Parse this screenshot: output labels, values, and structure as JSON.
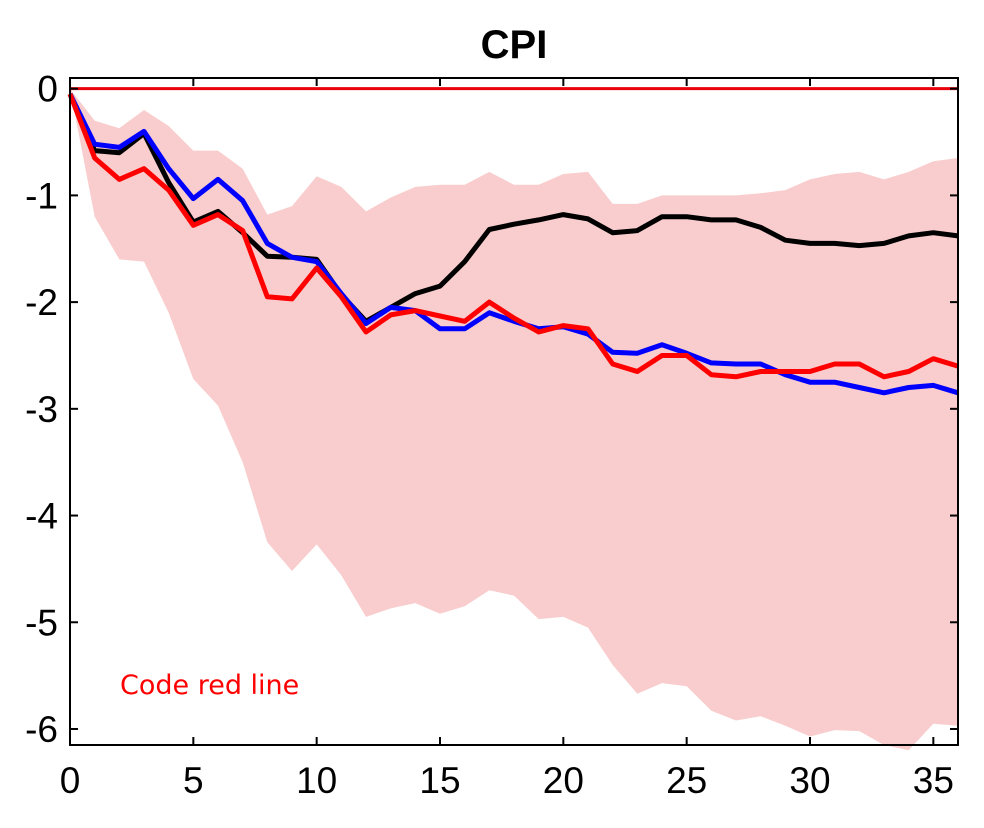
{
  "chart_data": {
    "type": "line",
    "title": "CPI",
    "xlabel": "",
    "ylabel": "",
    "xlim": [
      0,
      36
    ],
    "ylim": [
      -6.15,
      0.1
    ],
    "xticks": [
      0,
      5,
      10,
      15,
      20,
      25,
      30,
      35
    ],
    "yticks": [
      0,
      -1,
      -2,
      -3,
      -4,
      -5,
      -6
    ],
    "grid": false,
    "legend": "none",
    "band": {
      "color": "#f9cdcd",
      "x": [
        0,
        1,
        2,
        3,
        4,
        5,
        6,
        7,
        8,
        9,
        10,
        11,
        12,
        13,
        14,
        15,
        16,
        17,
        18,
        19,
        20,
        21,
        22,
        23,
        24,
        25,
        26,
        27,
        28,
        29,
        30,
        31,
        32,
        33,
        34,
        35,
        36
      ],
      "upper": [
        0,
        -0.3,
        -0.37,
        -0.2,
        -0.35,
        -0.58,
        -0.58,
        -0.75,
        -1.18,
        -1.1,
        -0.82,
        -0.92,
        -1.15,
        -1.02,
        -0.92,
        -0.9,
        -0.9,
        -0.78,
        -0.9,
        -0.9,
        -0.8,
        -0.78,
        -1.08,
        -1.08,
        -1.0,
        -1.0,
        -1.0,
        -1.0,
        -0.98,
        -0.95,
        -0.85,
        -0.8,
        -0.78,
        -0.85,
        -0.78,
        -0.68,
        -0.65
      ],
      "lower": [
        0,
        -1.2,
        -1.6,
        -1.62,
        -2.1,
        -2.72,
        -2.97,
        -3.5,
        -4.25,
        -4.52,
        -4.27,
        -4.56,
        -4.95,
        -4.87,
        -4.82,
        -4.92,
        -4.85,
        -4.7,
        -4.75,
        -4.97,
        -4.95,
        -5.05,
        -5.4,
        -5.67,
        -5.57,
        -5.6,
        -5.83,
        -5.92,
        -5.88,
        -5.97,
        -6.07,
        -6.01,
        -6.02,
        -6.15,
        -6.2,
        -5.95,
        -5.97
      ]
    },
    "zero_line": {
      "y": 0,
      "color": "#e8000b"
    },
    "x": [
      0,
      1,
      2,
      3,
      4,
      5,
      6,
      7,
      8,
      9,
      10,
      11,
      12,
      13,
      14,
      15,
      16,
      17,
      18,
      19,
      20,
      21,
      22,
      23,
      24,
      25,
      26,
      27,
      28,
      29,
      30,
      31,
      32,
      33,
      34,
      35,
      36
    ],
    "series": [
      {
        "color": "#000000",
        "values": [
          -0.05,
          -0.58,
          -0.6,
          -0.42,
          -0.88,
          -1.25,
          -1.15,
          -1.35,
          -1.57,
          -1.58,
          -1.6,
          -1.93,
          -2.18,
          -2.05,
          -1.92,
          -1.85,
          -1.62,
          -1.32,
          -1.27,
          -1.23,
          -1.18,
          -1.22,
          -1.35,
          -1.33,
          -1.2,
          -1.2,
          -1.23,
          -1.23,
          -1.3,
          -1.42,
          -1.45,
          -1.45,
          -1.47,
          -1.45,
          -1.38,
          -1.35,
          -1.38
        ]
      },
      {
        "color": "#0000ff",
        "values": [
          -0.05,
          -0.52,
          -0.55,
          -0.4,
          -0.75,
          -1.03,
          -0.85,
          -1.05,
          -1.45,
          -1.58,
          -1.62,
          -1.92,
          -2.2,
          -2.05,
          -2.08,
          -2.25,
          -2.25,
          -2.1,
          -2.18,
          -2.25,
          -2.23,
          -2.3,
          -2.47,
          -2.48,
          -2.4,
          -2.48,
          -2.57,
          -2.58,
          -2.58,
          -2.68,
          -2.75,
          -2.75,
          -2.8,
          -2.85,
          -2.8,
          -2.78,
          -2.85
        ]
      },
      {
        "color": "#ff0000",
        "values": [
          -0.05,
          -0.65,
          -0.85,
          -0.75,
          -0.95,
          -1.28,
          -1.18,
          -1.33,
          -1.95,
          -1.97,
          -1.68,
          -1.95,
          -2.28,
          -2.12,
          -2.08,
          -2.13,
          -2.18,
          -2.0,
          -2.15,
          -2.28,
          -2.22,
          -2.25,
          -2.58,
          -2.65,
          -2.5,
          -2.5,
          -2.68,
          -2.7,
          -2.65,
          -2.65,
          -2.65,
          -2.58,
          -2.58,
          -2.7,
          -2.65,
          -2.53,
          -2.6
        ]
      }
    ],
    "annotations": [
      {
        "text": "Code red line",
        "color": "#ff0000"
      }
    ]
  }
}
